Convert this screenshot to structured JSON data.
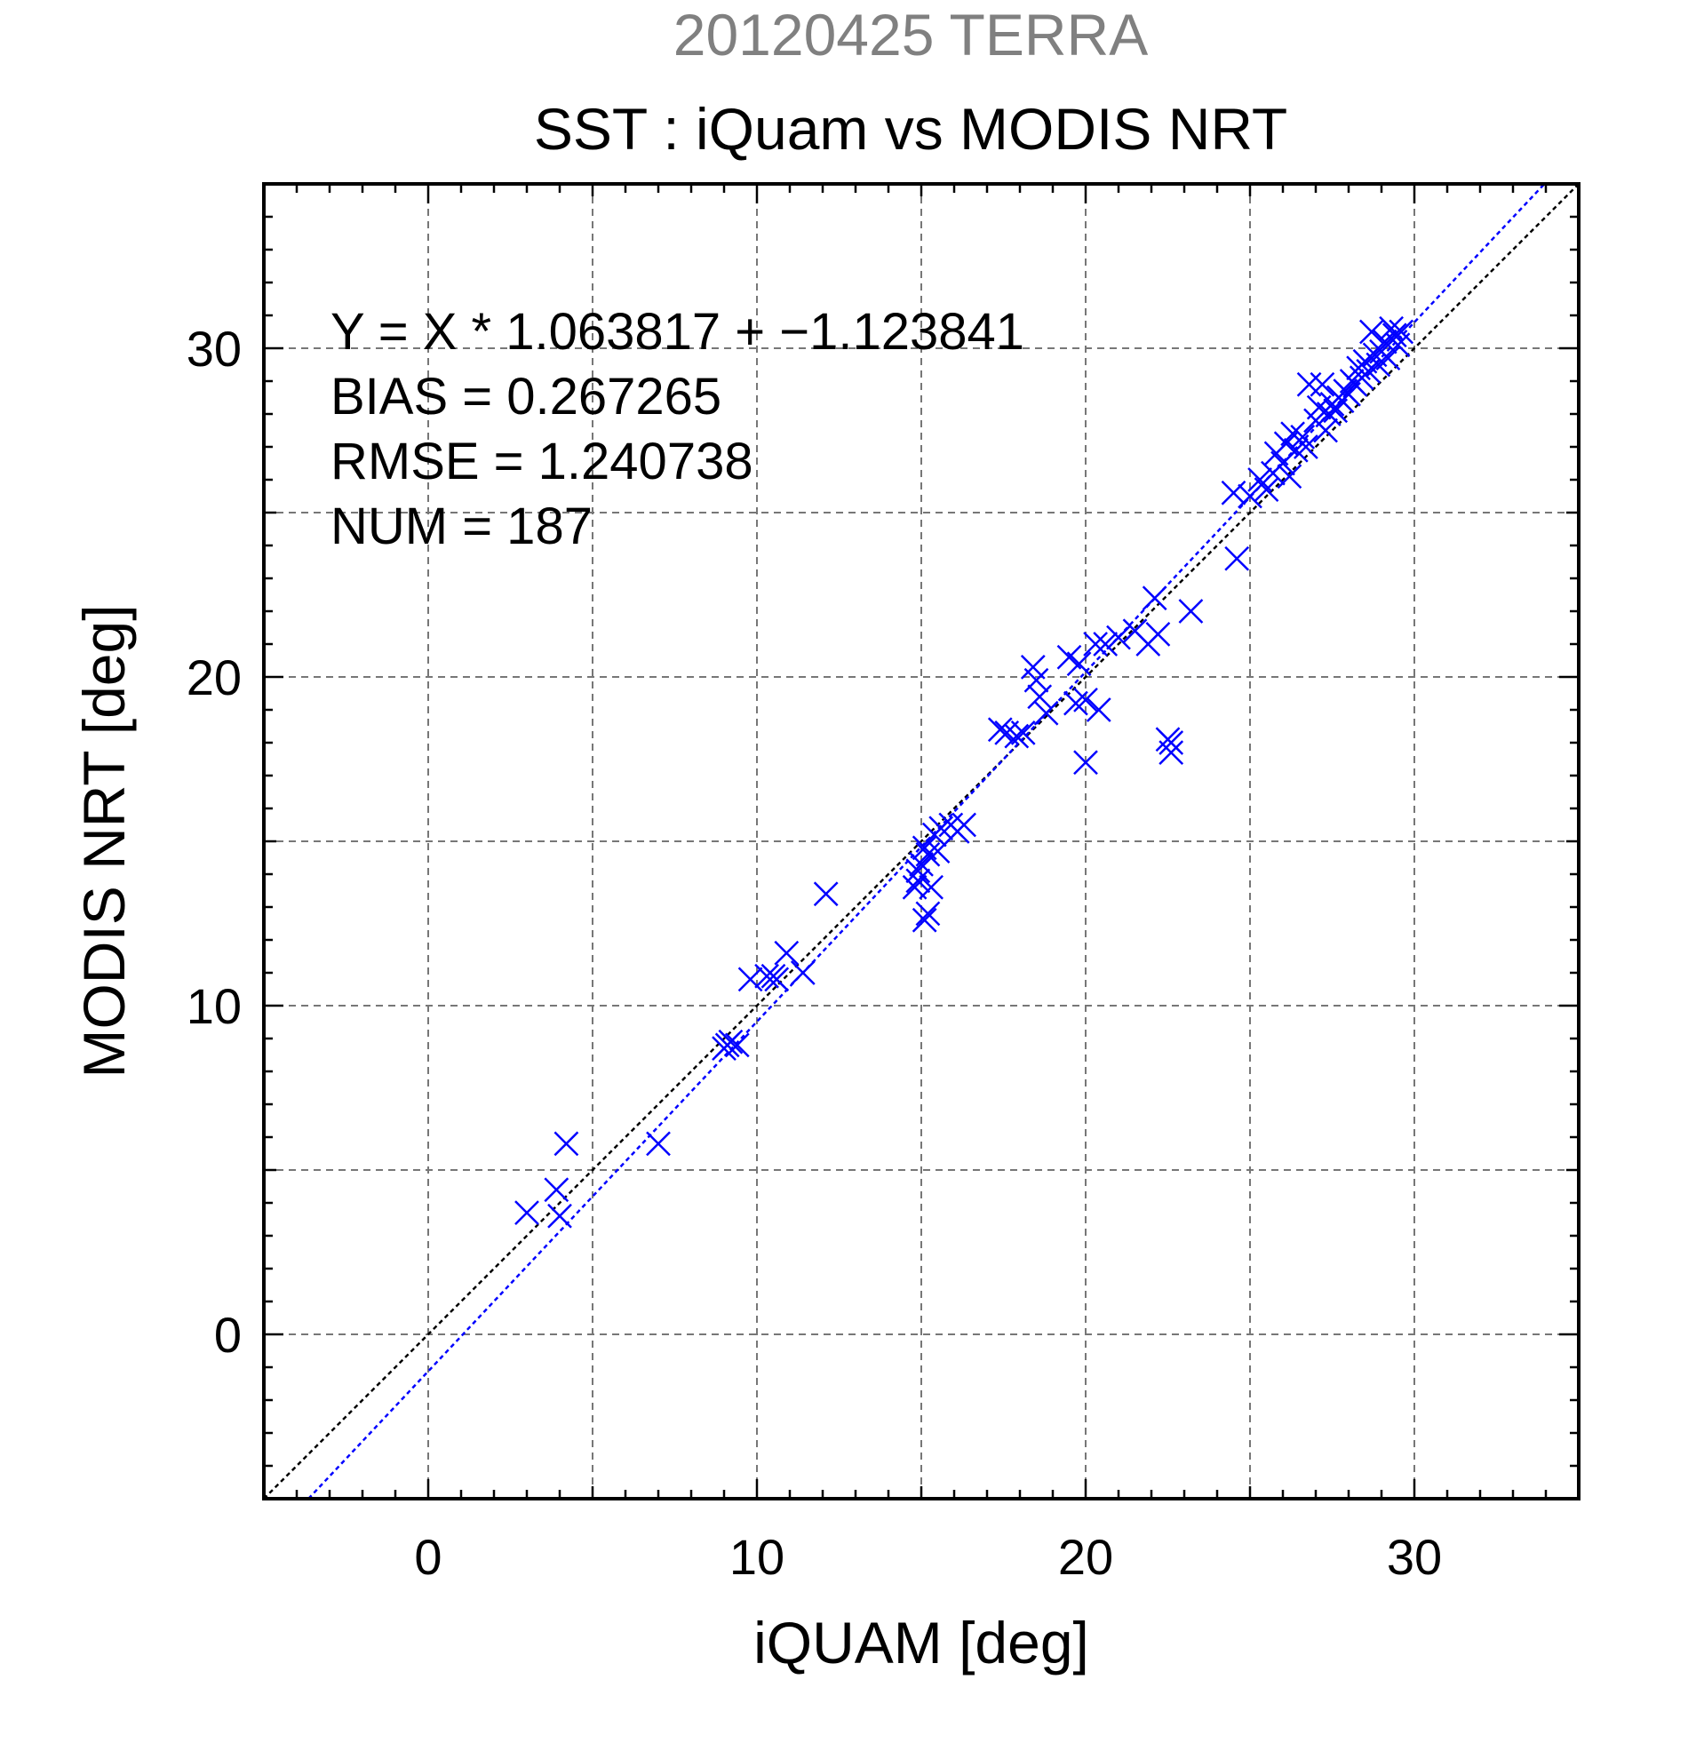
{
  "chart_data": {
    "type": "scatter",
    "title": "20120425 TERRA",
    "subtitle": "SST : iQuam vs MODIS NRT",
    "xlabel": "iQUAM [deg]",
    "ylabel": "MODIS NRT [deg]",
    "xlim": [
      -5,
      35
    ],
    "ylim": [
      -5,
      35
    ],
    "x_ticks": [
      0,
      10,
      20,
      30
    ],
    "y_ticks": [
      0,
      10,
      20,
      30
    ],
    "grid": true,
    "colors": {
      "points": "#0000ff",
      "fit_line": "#0000ff",
      "identity_line": "#000000",
      "title": "#808080",
      "grid": "#777777"
    },
    "marker": "x",
    "stats": {
      "equation": "Y = X * 1.063817 + −1.123841",
      "bias": "BIAS = 0.267265",
      "rmse": "RMSE = 1.240738",
      "num": "NUM = 187"
    },
    "fit": {
      "slope": 1.063817,
      "intercept": -1.123841
    },
    "series": [
      {
        "values": [
          [
            3.0,
            3.7
          ],
          [
            3.9,
            4.4
          ],
          [
            4.0,
            3.6
          ],
          [
            4.2,
            5.8
          ],
          [
            7.0,
            5.8
          ],
          [
            9.0,
            8.7
          ],
          [
            9.1,
            8.8
          ],
          [
            9.2,
            8.9
          ],
          [
            9.4,
            8.8
          ],
          [
            9.8,
            10.8
          ],
          [
            10.3,
            10.9
          ],
          [
            10.5,
            10.9
          ],
          [
            10.6,
            10.8
          ],
          [
            10.9,
            11.6
          ],
          [
            11.4,
            11.0
          ],
          [
            12.1,
            13.4
          ],
          [
            14.8,
            13.6
          ],
          [
            14.9,
            13.8
          ],
          [
            15.0,
            14.3
          ],
          [
            15.1,
            14.8
          ],
          [
            15.2,
            14.6
          ],
          [
            15.3,
            13.6
          ],
          [
            15.2,
            12.8
          ],
          [
            15.1,
            12.6
          ],
          [
            15.4,
            15.2
          ],
          [
            15.5,
            14.7
          ],
          [
            15.6,
            15.4
          ],
          [
            15.9,
            15.5
          ],
          [
            16.1,
            15.3
          ],
          [
            16.3,
            15.5
          ],
          [
            14.9,
            14.1
          ],
          [
            17.4,
            18.4
          ],
          [
            17.6,
            18.3
          ],
          [
            17.9,
            18.2
          ],
          [
            18.1,
            18.3
          ],
          [
            18.4,
            20.3
          ],
          [
            18.5,
            19.9
          ],
          [
            18.6,
            19.4
          ],
          [
            18.8,
            18.9
          ],
          [
            19.5,
            20.6
          ],
          [
            19.7,
            19.2
          ],
          [
            19.8,
            20.4
          ],
          [
            20.0,
            19.3
          ],
          [
            20.0,
            17.4
          ],
          [
            20.3,
            21.0
          ],
          [
            20.4,
            19.0
          ],
          [
            20.6,
            21.0
          ],
          [
            21.0,
            21.2
          ],
          [
            21.5,
            21.4
          ],
          [
            21.9,
            21.0
          ],
          [
            22.1,
            22.4
          ],
          [
            22.2,
            21.3
          ],
          [
            22.5,
            18.1
          ],
          [
            22.6,
            17.7
          ],
          [
            22.6,
            18.0
          ],
          [
            23.2,
            22.0
          ],
          [
            24.5,
            25.6
          ],
          [
            24.6,
            23.6
          ],
          [
            25.0,
            25.5
          ],
          [
            25.3,
            26.0
          ],
          [
            25.5,
            25.7
          ],
          [
            25.7,
            26.2
          ],
          [
            25.8,
            26.8
          ],
          [
            26.0,
            26.5
          ],
          [
            26.1,
            27.1
          ],
          [
            26.2,
            26.1
          ],
          [
            26.3,
            27.4
          ],
          [
            26.4,
            26.9
          ],
          [
            26.6,
            27.3
          ],
          [
            26.7,
            27.0
          ],
          [
            26.8,
            28.9
          ],
          [
            27.0,
            27.8
          ],
          [
            27.1,
            28.2
          ],
          [
            27.2,
            28.9
          ],
          [
            27.3,
            27.5
          ],
          [
            27.4,
            28.0
          ],
          [
            27.5,
            28.3
          ],
          [
            27.6,
            28.1
          ],
          [
            27.7,
            28.5
          ],
          [
            27.8,
            28.4
          ],
          [
            27.9,
            28.7
          ],
          [
            28.0,
            28.6
          ],
          [
            28.1,
            29.0
          ],
          [
            28.2,
            28.9
          ],
          [
            28.3,
            29.4
          ],
          [
            28.4,
            29.1
          ],
          [
            28.5,
            29.6
          ],
          [
            28.6,
            29.3
          ],
          [
            28.7,
            30.5
          ],
          [
            28.8,
            29.8
          ],
          [
            28.9,
            29.5
          ],
          [
            29.0,
            29.9
          ],
          [
            29.1,
            30.2
          ],
          [
            29.2,
            29.7
          ],
          [
            29.3,
            30.6
          ],
          [
            29.4,
            30.4
          ],
          [
            29.5,
            30.1
          ],
          [
            29.6,
            30.5
          ]
        ]
      }
    ]
  }
}
